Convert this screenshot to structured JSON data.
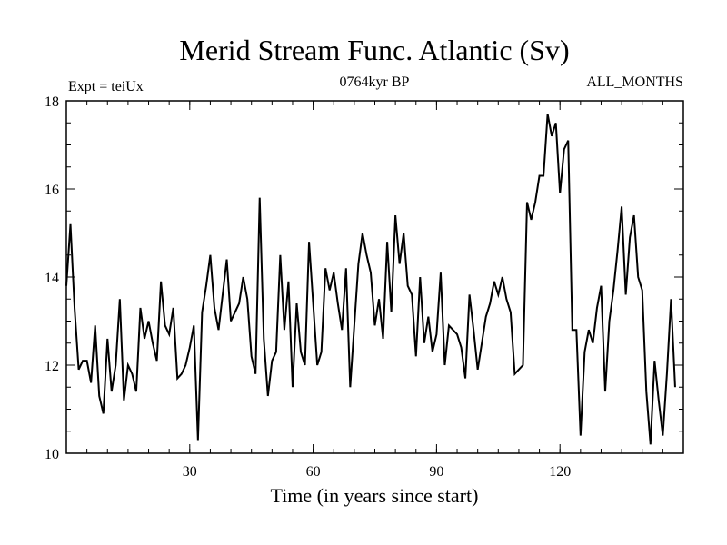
{
  "chart_data": {
    "type": "line",
    "title": "Merid Stream Func. Atlantic (Sv)",
    "subtitle_left": "Expt = teiUx",
    "subtitle_center": "0764kyr BP",
    "subtitle_right": "ALL_MONTHS",
    "xlabel": "Time (in years since start)",
    "ylabel": "",
    "xlim": [
      0,
      150
    ],
    "ylim": [
      10,
      18
    ],
    "x_ticks": [
      30,
      60,
      90,
      120
    ],
    "y_ticks": [
      10,
      12,
      14,
      16,
      18
    ],
    "x_minor_step": 5,
    "y_minor_step": 0.5,
    "series": [
      {
        "name": "Merid Stream Func. Atlantic",
        "x_start": 0,
        "x_step": 1,
        "values": [
          13.8,
          15.2,
          13.3,
          11.9,
          12.1,
          12.1,
          11.6,
          12.9,
          11.3,
          10.9,
          12.6,
          11.4,
          12.0,
          13.5,
          11.2,
          12.0,
          11.8,
          11.4,
          13.3,
          12.6,
          13.0,
          12.5,
          12.1,
          13.9,
          12.9,
          12.7,
          13.3,
          11.7,
          11.8,
          12.0,
          12.4,
          12.9,
          10.3,
          13.2,
          13.8,
          14.5,
          13.3,
          12.8,
          13.6,
          14.4,
          13.0,
          13.2,
          13.4,
          14.0,
          13.5,
          12.2,
          11.8,
          15.8,
          12.6,
          11.3,
          12.1,
          12.3,
          14.5,
          12.8,
          13.9,
          11.5,
          13.4,
          12.3,
          12.0,
          14.8,
          13.4,
          12.0,
          12.3,
          14.2,
          13.7,
          14.1,
          13.4,
          12.8,
          14.2,
          11.5,
          12.9,
          14.3,
          15.0,
          14.5,
          14.1,
          12.9,
          13.5,
          12.6,
          14.8,
          13.2,
          15.4,
          14.3,
          15.0,
          13.8,
          13.6,
          12.2,
          14.0,
          12.5,
          13.1,
          12.3,
          12.7,
          14.1,
          12.0,
          12.9,
          12.8,
          12.7,
          12.4,
          11.7,
          13.6,
          12.8,
          11.9,
          12.5,
          13.1,
          13.4,
          13.9,
          13.6,
          14.0,
          13.5,
          13.2,
          11.8,
          11.9,
          12.0,
          15.7,
          15.3,
          15.7,
          16.3,
          16.3,
          17.7,
          17.2,
          17.5,
          15.9,
          16.9,
          17.1,
          12.8,
          12.8,
          10.4,
          12.3,
          12.8,
          12.5,
          13.3,
          13.8,
          11.4,
          13.0,
          13.7,
          14.6,
          15.6,
          13.6,
          14.9,
          15.4,
          14.0,
          13.7,
          11.4,
          10.2,
          12.1,
          11.2,
          10.4,
          11.8,
          13.5,
          11.5
        ]
      }
    ]
  }
}
